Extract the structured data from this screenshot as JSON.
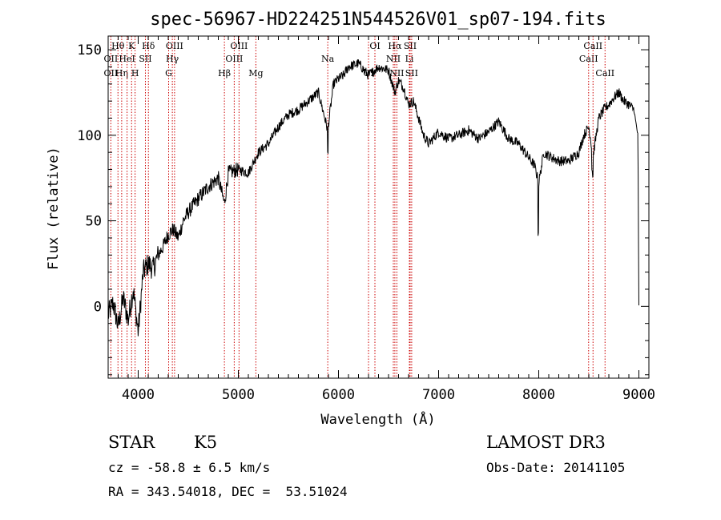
{
  "chart_data": {
    "type": "line",
    "title": "spec-56967-HD224251N544526V01_sp07-194.fits",
    "xlabel": "Wavelength (Å)",
    "ylabel": "Flux (relative)",
    "xlim": [
      3700,
      9100
    ],
    "ylim": [
      -42,
      158
    ],
    "xticks": [
      4000,
      5000,
      6000,
      7000,
      8000,
      9000
    ],
    "xtick_labels": [
      "4000",
      "5000",
      "6000",
      "7000",
      "8000",
      "9000"
    ],
    "yticks": [
      0,
      50,
      100,
      150
    ],
    "ytick_labels": [
      "0",
      "50",
      "100",
      "150"
    ],
    "grid": false,
    "legend": "none",
    "series": [
      {
        "x": [
          3700,
          3750,
          3800,
          3850,
          3900,
          3950,
          4000,
          4050,
          4100,
          4150,
          4200,
          4250,
          4300,
          4350,
          4400,
          4450,
          4500,
          4600,
          4700,
          4800,
          4861,
          4900,
          5000,
          5100,
          5200,
          5300,
          5400,
          5500,
          5600,
          5700,
          5800,
          5893,
          5950,
          6000,
          6050,
          6100,
          6200,
          6300,
          6400,
          6500,
          6563,
          6600,
          6650,
          6700,
          6750,
          6800,
          6850,
          6900,
          7000,
          7100,
          7200,
          7300,
          7400,
          7500,
          7600,
          7650,
          7700,
          7800,
          7900,
          7960,
          8000,
          8050,
          8100,
          8200,
          8300,
          8400,
          8450,
          8500,
          8542,
          8600,
          8650,
          8700,
          8750,
          8800,
          8850,
          8900,
          8950,
          8990,
          9000
        ],
        "values": [
          -5,
          2,
          -12,
          5,
          -8,
          10,
          -15,
          20,
          25,
          22,
          30,
          35,
          42,
          45,
          40,
          50,
          55,
          63,
          70,
          75,
          60,
          78,
          80,
          78,
          90,
          95,
          105,
          112,
          115,
          120,
          125,
          103,
          130,
          133,
          135,
          140,
          142,
          135,
          140,
          138,
          125,
          132,
          128,
          118,
          120,
          110,
          100,
          95,
          102,
          98,
          100,
          103,
          98,
          102,
          108,
          103,
          98,
          95,
          87,
          82,
          72,
          90,
          88,
          85,
          85,
          90,
          100,
          105,
          88,
          110,
          115,
          118,
          122,
          125,
          120,
          118,
          115,
          100,
          0
        ]
      }
    ],
    "line_markers": [
      {
        "label": "OII",
        "x": 3727,
        "row": 2
      },
      {
        "label": "OII",
        "x": 3727,
        "row": 3
      },
      {
        "label": "Hθ",
        "x": 3798,
        "row": 1
      },
      {
        "label": "Hη",
        "x": 3835,
        "row": 3
      },
      {
        "label": "HeI",
        "x": 3889,
        "row": 2
      },
      {
        "label": "K",
        "x": 3934,
        "row": 1
      },
      {
        "label": "H",
        "x": 3969,
        "row": 3
      },
      {
        "label": "SII",
        "x": 4072,
        "row": 2
      },
      {
        "label": "Hδ",
        "x": 4102,
        "row": 1
      },
      {
        "label": "G",
        "x": 4304,
        "row": 3
      },
      {
        "label": "OIII",
        "x": 4363,
        "row": 1
      },
      {
        "label": "Hγ",
        "x": 4341,
        "row": 2
      },
      {
        "label": "Hβ",
        "x": 4861,
        "row": 3
      },
      {
        "label": "OIII",
        "x": 4959,
        "row": 2
      },
      {
        "label": "OIII",
        "x": 5007,
        "row": 1
      },
      {
        "label": "Mg",
        "x": 5175,
        "row": 3
      },
      {
        "label": "Na",
        "x": 5893,
        "row": 2
      },
      {
        "label": "OI",
        "x": 6300,
        "row": 3
      },
      {
        "label": "OI",
        "x": 6364,
        "row": 1
      },
      {
        "label": "NII",
        "x": 6548,
        "row": 2
      },
      {
        "label": "Hα",
        "x": 6563,
        "row": 1
      },
      {
        "label": "NII",
        "x": 6583,
        "row": 3
      },
      {
        "label": "Li",
        "x": 6708,
        "row": 2
      },
      {
        "label": "SII",
        "x": 6716,
        "row": 1
      },
      {
        "label": "SII",
        "x": 6731,
        "row": 3
      },
      {
        "label": "CaII",
        "x": 8498,
        "row": 2
      },
      {
        "label": "CaII",
        "x": 8542,
        "row": 1
      },
      {
        "label": "CaII",
        "x": 8662,
        "row": 3
      }
    ]
  },
  "info": {
    "object_class": "STAR",
    "subclass": "K5",
    "survey": "LAMOST DR3",
    "redshift": "cz = -58.8 ± 6.5 km/s",
    "obs_date": "Obs-Date: 20141105",
    "coords": "RA = 343.54018, DEC =  53.51024"
  }
}
